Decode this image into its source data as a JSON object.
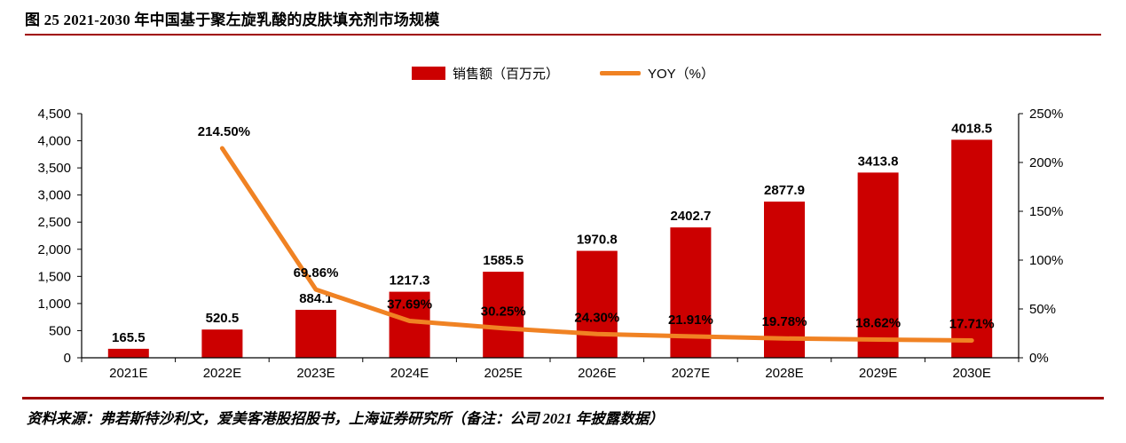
{
  "title": "图 25 2021-2030 年中国基于聚左旋乳酸的皮肤填充剂市场规模",
  "source_note": "资料来源：弗若斯特沙利文，爱美客港股招股书，上海证券研究所（备注：公司 2021 年披露数据）",
  "legend": {
    "bar_label": "销售额（百万元）",
    "line_label": "YOY（%）"
  },
  "colors": {
    "bar": "#cc0000",
    "line": "#f08223",
    "rule": "#a00000",
    "axis": "#000000",
    "label_text": "#000000"
  },
  "chart_data": {
    "type": "bar",
    "combo": "bar+line",
    "title": "图 25 2021-2030 年中国基于聚左旋乳酸的皮肤填充剂市场规模",
    "categories": [
      "2021E",
      "2022E",
      "2023E",
      "2024E",
      "2025E",
      "2026E",
      "2027E",
      "2028E",
      "2029E",
      "2030E"
    ],
    "series": [
      {
        "name": "销售额（百万元）",
        "type": "bar",
        "axis": "left",
        "values": [
          165.5,
          520.5,
          884.1,
          1217.3,
          1585.5,
          1970.8,
          2402.7,
          2877.9,
          3413.8,
          4018.5
        ],
        "labels": [
          "165.5",
          "520.5",
          "884.1",
          "1217.3",
          "1585.5",
          "1970.8",
          "2402.7",
          "2877.9",
          "3413.8",
          "4018.5"
        ]
      },
      {
        "name": "YOY（%）",
        "type": "line",
        "axis": "right",
        "values": [
          null,
          214.5,
          69.86,
          37.69,
          30.25,
          24.3,
          21.91,
          19.78,
          18.62,
          17.71
        ],
        "labels": [
          "",
          "214.50%",
          "69.86%",
          "37.69%",
          "30.25%",
          "24.30%",
          "21.91%",
          "19.78%",
          "18.62%",
          "17.71%"
        ]
      }
    ],
    "left_axis": {
      "min": 0,
      "max": 4500,
      "step": 500,
      "ticks": [
        "0",
        "500",
        "1,000",
        "1,500",
        "2,000",
        "2,500",
        "3,000",
        "3,500",
        "4,000",
        "4,500"
      ]
    },
    "right_axis": {
      "min": 0,
      "max": 250,
      "step": 50,
      "ticks": [
        "0%",
        "50%",
        "100%",
        "150%",
        "200%",
        "250%"
      ]
    },
    "grid": false,
    "legend_position": "top-center"
  }
}
